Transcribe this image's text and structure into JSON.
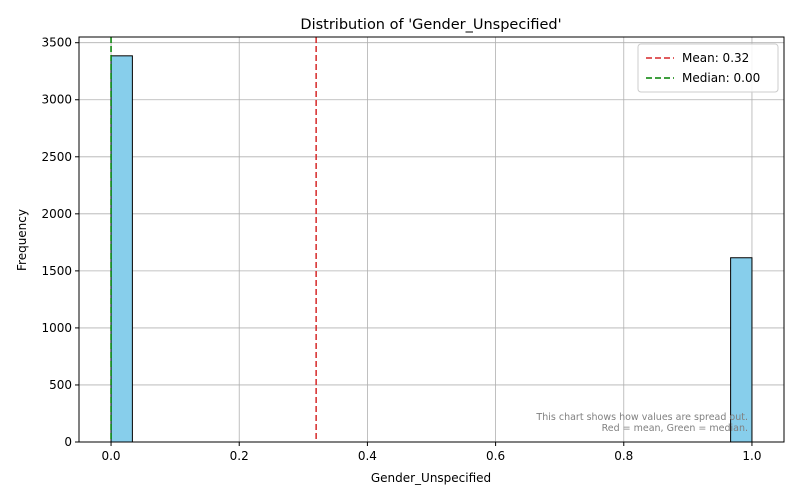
{
  "chart_data": {
    "type": "bar",
    "title": "Distribution of 'Gender_Unspecified'",
    "xlabel": "Gender_Unspecified",
    "ylabel": "Frequency",
    "xlim": [
      -0.05,
      1.05
    ],
    "ylim": [
      0,
      3550
    ],
    "xticks": [
      0.0,
      0.2,
      0.4,
      0.6,
      0.8,
      1.0
    ],
    "xtick_labels": [
      "0.0",
      "0.2",
      "0.4",
      "0.6",
      "0.8",
      "1.0"
    ],
    "yticks": [
      0,
      500,
      1000,
      1500,
      2000,
      2500,
      3000,
      3500
    ],
    "ytick_labels": [
      "0",
      "500",
      "1000",
      "1500",
      "2000",
      "2500",
      "3000",
      "3500"
    ],
    "grid": true,
    "bins": 30,
    "bars": [
      {
        "x0": 0.0,
        "x1": 0.0333,
        "value": 3385
      },
      {
        "x0": 0.9667,
        "x1": 1.0,
        "value": 1615
      }
    ],
    "bar_color": "#87ceeb",
    "bar_edge_color": "#000000",
    "reference_lines": [
      {
        "label": "Mean: 0.32",
        "x": 0.32,
        "color": "#d62728",
        "style": "dashed"
      },
      {
        "label": "Median: 0.00",
        "x": 0.0,
        "color": "#008000",
        "style": "dashed"
      }
    ],
    "legend_position": "top-right",
    "annotation": {
      "line1": "This chart shows how values are spread out.",
      "line2": "Red = mean, Green = median."
    }
  }
}
